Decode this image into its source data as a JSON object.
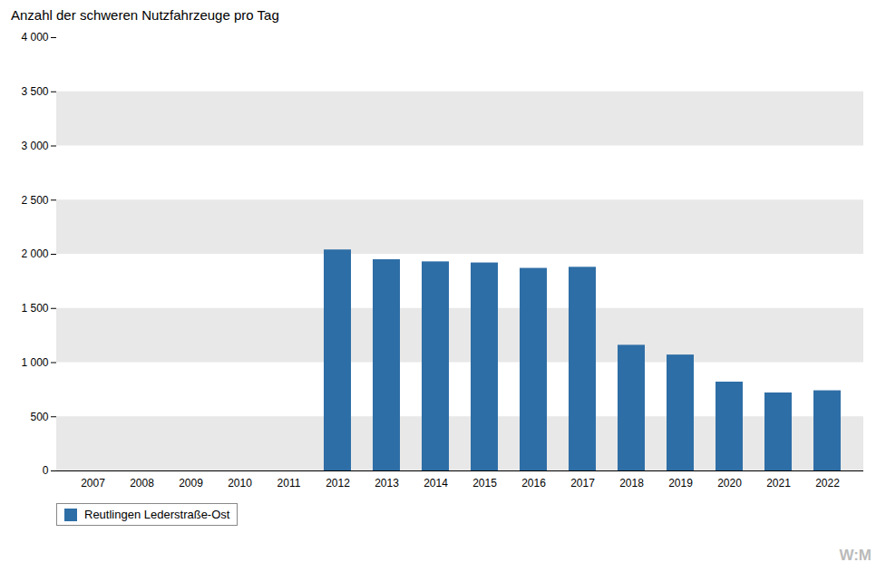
{
  "chart_data": {
    "type": "bar",
    "title": "Anzahl  der schweren Nutzfahrzeuge  pro Tag",
    "categories": [
      "2007",
      "2008",
      "2009",
      "2010",
      "2011",
      "2012",
      "2013",
      "2014",
      "2015",
      "2016",
      "2017",
      "2018",
      "2019",
      "2020",
      "2021",
      "2022"
    ],
    "series": [
      {
        "name": "Reutlingen Lederstraße-Ost",
        "color": "#2E6EA6",
        "values": [
          null,
          null,
          null,
          null,
          null,
          2040,
          1950,
          1930,
          1920,
          1870,
          1880,
          1160,
          1070,
          820,
          720,
          740
        ]
      }
    ],
    "ylim": [
      0,
      4000
    ],
    "yticks": [
      0,
      500,
      {
        "value": 1000,
        "label": "1 000"
      },
      {
        "value": 1500,
        "label": "1 500"
      },
      {
        "value": 2000,
        "label": "2 000"
      },
      {
        "value": 2500,
        "label": "2 500"
      },
      {
        "value": 3000,
        "label": "3 000"
      },
      {
        "value": 3500,
        "label": "3 500"
      },
      {
        "value": 4000,
        "label": "4 000"
      }
    ],
    "grid": false,
    "legend": "bottom",
    "annotations": [
      "W:M"
    ]
  }
}
